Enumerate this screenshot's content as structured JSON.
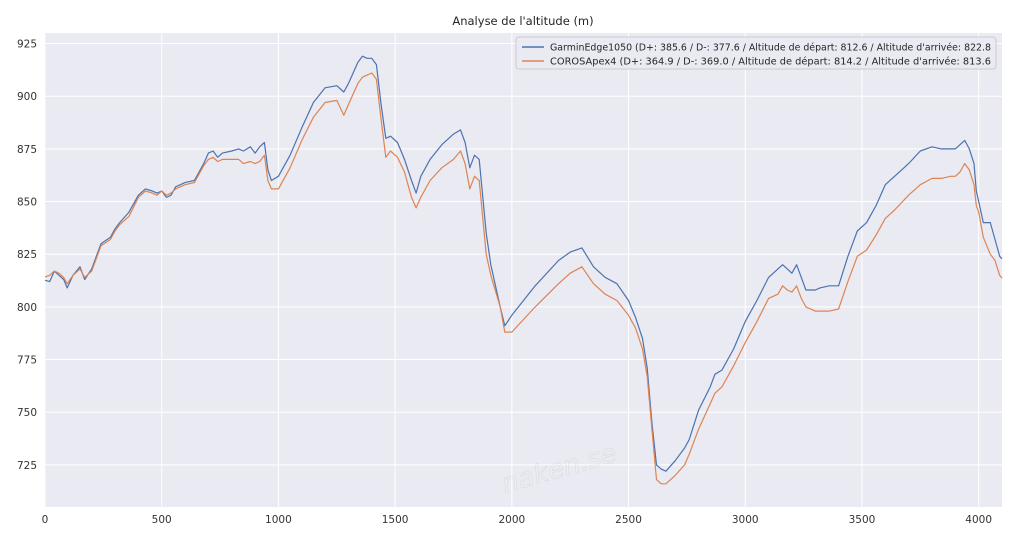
{
  "chart_data": {
    "type": "line",
    "title": "Analyse de l'altitude (m)",
    "xlabel": "",
    "ylabel": "",
    "xlim": [
      0,
      4100
    ],
    "ylim": [
      705,
      930
    ],
    "grid": true,
    "legend_position": "top-right",
    "x_ticks": [
      "0",
      "500",
      "1000",
      "1500",
      "2000",
      "2500",
      "3000",
      "3500",
      "4000"
    ],
    "y_ticks": [
      "725",
      "750",
      "775",
      "800",
      "825",
      "850",
      "875",
      "900",
      "925"
    ],
    "series": [
      {
        "name": "GarminEdge1050 (D+: 385.6 / D-: 377.6 / Altitude de départ: 812.6 / Altitude d'arrivée: 822.8",
        "color": "#4c72b0",
        "points": [
          [
            0,
            812.6
          ],
          [
            20,
            812
          ],
          [
            40,
            817
          ],
          [
            60,
            815
          ],
          [
            80,
            813
          ],
          [
            95,
            809
          ],
          [
            120,
            815
          ],
          [
            150,
            819
          ],
          [
            170,
            813
          ],
          [
            200,
            818
          ],
          [
            240,
            830
          ],
          [
            280,
            833
          ],
          [
            300,
            837
          ],
          [
            320,
            840
          ],
          [
            360,
            845
          ],
          [
            400,
            853
          ],
          [
            430,
            856
          ],
          [
            460,
            855
          ],
          [
            480,
            854
          ],
          [
            500,
            855
          ],
          [
            520,
            852
          ],
          [
            540,
            853
          ],
          [
            560,
            857
          ],
          [
            600,
            859
          ],
          [
            640,
            860
          ],
          [
            680,
            868
          ],
          [
            700,
            873
          ],
          [
            720,
            874
          ],
          [
            740,
            871
          ],
          [
            760,
            873
          ],
          [
            800,
            874
          ],
          [
            830,
            875
          ],
          [
            850,
            874
          ],
          [
            880,
            876
          ],
          [
            900,
            873
          ],
          [
            920,
            876
          ],
          [
            940,
            878
          ],
          [
            955,
            865
          ],
          [
            970,
            860
          ],
          [
            1000,
            862
          ],
          [
            1050,
            872
          ],
          [
            1100,
            885
          ],
          [
            1150,
            897
          ],
          [
            1200,
            904
          ],
          [
            1250,
            905
          ],
          [
            1280,
            902
          ],
          [
            1300,
            906
          ],
          [
            1340,
            916
          ],
          [
            1360,
            919
          ],
          [
            1380,
            918
          ],
          [
            1400,
            918
          ],
          [
            1420,
            915
          ],
          [
            1440,
            896
          ],
          [
            1460,
            880
          ],
          [
            1480,
            881
          ],
          [
            1510,
            878
          ],
          [
            1540,
            870
          ],
          [
            1570,
            860
          ],
          [
            1590,
            854
          ],
          [
            1610,
            862
          ],
          [
            1650,
            870
          ],
          [
            1700,
            877
          ],
          [
            1750,
            882
          ],
          [
            1780,
            884
          ],
          [
            1800,
            878
          ],
          [
            1820,
            866
          ],
          [
            1840,
            872
          ],
          [
            1860,
            870
          ],
          [
            1890,
            835
          ],
          [
            1910,
            820
          ],
          [
            1950,
            800
          ],
          [
            1970,
            791
          ],
          [
            2000,
            796
          ],
          [
            2100,
            810
          ],
          [
            2200,
            822
          ],
          [
            2250,
            826
          ],
          [
            2300,
            828
          ],
          [
            2350,
            819
          ],
          [
            2400,
            814
          ],
          [
            2450,
            811
          ],
          [
            2500,
            803
          ],
          [
            2530,
            795
          ],
          [
            2560,
            785
          ],
          [
            2580,
            771
          ],
          [
            2600,
            745
          ],
          [
            2620,
            725
          ],
          [
            2640,
            723
          ],
          [
            2660,
            722
          ],
          [
            2700,
            727
          ],
          [
            2740,
            733
          ],
          [
            2760,
            737
          ],
          [
            2800,
            751
          ],
          [
            2850,
            762
          ],
          [
            2870,
            768
          ],
          [
            2900,
            770
          ],
          [
            2950,
            780
          ],
          [
            3000,
            793
          ],
          [
            3050,
            803
          ],
          [
            3100,
            814
          ],
          [
            3140,
            818
          ],
          [
            3160,
            820
          ],
          [
            3180,
            818
          ],
          [
            3200,
            816
          ],
          [
            3220,
            820
          ],
          [
            3240,
            814
          ],
          [
            3260,
            808
          ],
          [
            3300,
            808
          ],
          [
            3320,
            809
          ],
          [
            3360,
            810
          ],
          [
            3400,
            810
          ],
          [
            3440,
            824
          ],
          [
            3480,
            836
          ],
          [
            3520,
            840
          ],
          [
            3560,
            848
          ],
          [
            3600,
            858
          ],
          [
            3640,
            862
          ],
          [
            3700,
            868
          ],
          [
            3750,
            874
          ],
          [
            3800,
            876
          ],
          [
            3840,
            875
          ],
          [
            3880,
            875
          ],
          [
            3900,
            875
          ],
          [
            3920,
            877
          ],
          [
            3940,
            879
          ],
          [
            3960,
            875
          ],
          [
            3980,
            868
          ],
          [
            3990,
            855
          ],
          [
            4000,
            850
          ],
          [
            4020,
            840
          ],
          [
            4050,
            840
          ],
          [
            4070,
            832
          ],
          [
            4090,
            824
          ],
          [
            4100,
            822.8
          ]
        ]
      },
      {
        "name": "COROSApex4 (D+: 364.9 / D-: 369.0 / Altitude de départ: 814.2 / Altitude d'arrivée: 813.6",
        "color": "#dd8452",
        "points": [
          [
            0,
            814.2
          ],
          [
            20,
            815
          ],
          [
            40,
            817
          ],
          [
            60,
            816
          ],
          [
            80,
            814
          ],
          [
            95,
            811
          ],
          [
            120,
            815
          ],
          [
            150,
            818
          ],
          [
            170,
            814
          ],
          [
            200,
            817
          ],
          [
            240,
            829
          ],
          [
            280,
            832
          ],
          [
            300,
            836
          ],
          [
            320,
            839
          ],
          [
            360,
            843
          ],
          [
            400,
            852
          ],
          [
            430,
            855
          ],
          [
            460,
            854
          ],
          [
            480,
            853
          ],
          [
            500,
            855
          ],
          [
            520,
            853
          ],
          [
            540,
            854
          ],
          [
            560,
            856
          ],
          [
            600,
            858
          ],
          [
            640,
            859
          ],
          [
            680,
            867
          ],
          [
            700,
            870
          ],
          [
            720,
            871
          ],
          [
            740,
            869
          ],
          [
            760,
            870
          ],
          [
            800,
            870
          ],
          [
            830,
            870
          ],
          [
            850,
            868
          ],
          [
            880,
            869
          ],
          [
            900,
            868
          ],
          [
            920,
            869
          ],
          [
            940,
            872
          ],
          [
            955,
            860
          ],
          [
            970,
            856
          ],
          [
            1000,
            856
          ],
          [
            1050,
            866
          ],
          [
            1100,
            879
          ],
          [
            1150,
            890
          ],
          [
            1200,
            897
          ],
          [
            1250,
            898
          ],
          [
            1280,
            891
          ],
          [
            1300,
            896
          ],
          [
            1340,
            906
          ],
          [
            1360,
            909
          ],
          [
            1380,
            910
          ],
          [
            1400,
            911
          ],
          [
            1420,
            908
          ],
          [
            1440,
            889
          ],
          [
            1460,
            871
          ],
          [
            1480,
            874
          ],
          [
            1510,
            871
          ],
          [
            1540,
            864
          ],
          [
            1570,
            852
          ],
          [
            1590,
            847
          ],
          [
            1610,
            852
          ],
          [
            1650,
            860
          ],
          [
            1700,
            866
          ],
          [
            1750,
            870
          ],
          [
            1780,
            874
          ],
          [
            1800,
            868
          ],
          [
            1820,
            856
          ],
          [
            1840,
            862
          ],
          [
            1860,
            860
          ],
          [
            1890,
            825
          ],
          [
            1910,
            815
          ],
          [
            1950,
            800
          ],
          [
            1970,
            788
          ],
          [
            2000,
            788
          ],
          [
            2100,
            800
          ],
          [
            2200,
            811
          ],
          [
            2250,
            816
          ],
          [
            2300,
            819
          ],
          [
            2350,
            811
          ],
          [
            2400,
            806
          ],
          [
            2450,
            803
          ],
          [
            2500,
            796
          ],
          [
            2530,
            790
          ],
          [
            2560,
            780
          ],
          [
            2580,
            767
          ],
          [
            2600,
            742
          ],
          [
            2620,
            718
          ],
          [
            2640,
            716
          ],
          [
            2660,
            716
          ],
          [
            2700,
            720
          ],
          [
            2740,
            725
          ],
          [
            2760,
            730
          ],
          [
            2800,
            742
          ],
          [
            2850,
            754
          ],
          [
            2870,
            759
          ],
          [
            2900,
            762
          ],
          [
            2950,
            772
          ],
          [
            3000,
            783
          ],
          [
            3050,
            793
          ],
          [
            3100,
            804
          ],
          [
            3140,
            806
          ],
          [
            3160,
            810
          ],
          [
            3180,
            808
          ],
          [
            3200,
            807
          ],
          [
            3220,
            810
          ],
          [
            3240,
            804
          ],
          [
            3260,
            800
          ],
          [
            3300,
            798
          ],
          [
            3320,
            798
          ],
          [
            3360,
            798
          ],
          [
            3400,
            799
          ],
          [
            3440,
            812
          ],
          [
            3480,
            824
          ],
          [
            3520,
            827
          ],
          [
            3560,
            834
          ],
          [
            3600,
            842
          ],
          [
            3640,
            846
          ],
          [
            3700,
            853
          ],
          [
            3750,
            858
          ],
          [
            3800,
            861
          ],
          [
            3840,
            861
          ],
          [
            3880,
            862
          ],
          [
            3900,
            862
          ],
          [
            3920,
            864
          ],
          [
            3940,
            868
          ],
          [
            3960,
            865
          ],
          [
            3980,
            858
          ],
          [
            3990,
            848
          ],
          [
            4000,
            845
          ],
          [
            4020,
            833
          ],
          [
            4050,
            825
          ],
          [
            4070,
            822
          ],
          [
            4090,
            815
          ],
          [
            4100,
            813.6
          ]
        ]
      }
    ]
  },
  "watermark": "naken.se"
}
